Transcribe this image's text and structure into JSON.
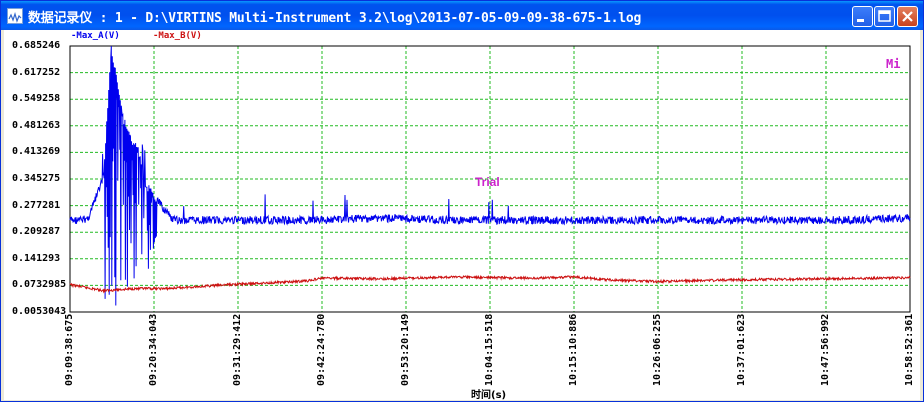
{
  "window": {
    "title": "数据记录仪 : 1 - D:\\VIRTINS Multi-Instrument 3.2\\log\\2013-07-05-09-09-38-675-1.log"
  },
  "colors": {
    "series_a": "#0000ee",
    "series_b": "#cc1111",
    "grid": "#22bb22",
    "annotation": "#cc22cc"
  },
  "annotations": {
    "trial": "Trial",
    "corner": "Mi"
  },
  "chart_data": {
    "type": "line",
    "xlabel": "时间(s)",
    "ylabel": "",
    "legend_placement": "top-left",
    "grid": true,
    "ylim": [
      0.0053043,
      0.685246
    ],
    "yticks": [
      "0.685246",
      "0.617252",
      "0.549258",
      "0.481263",
      "0.413269",
      "0.345275",
      "0.277281",
      "0.209287",
      "0.141293",
      "0.0732985",
      "0.0053043"
    ],
    "xticks": [
      "09:09:38:675",
      "09:20:34:043",
      "09:31:29:412",
      "09:42:24:780",
      "09:53:20:149",
      "10:04:15:518",
      "10:15:10:886",
      "10:26:06:255",
      "10:37:01:623",
      "10:47:56:992",
      "10:58:52:361"
    ],
    "series": [
      {
        "name": "Max_A(V)",
        "x": [
          "09:09:38",
          "09:11:00",
          "09:12:00",
          "09:14:00",
          "09:15:00",
          "09:16:30",
          "09:17:30",
          "09:18:30",
          "09:19:30",
          "09:21:00",
          "09:23:00",
          "09:25:00",
          "09:30:00",
          "09:40:00",
          "09:50:00",
          "10:00:00",
          "10:10:00",
          "10:20:00",
          "10:30:00",
          "10:40:00",
          "10:50:00",
          "10:58:52"
        ],
        "values": [
          0.24,
          0.24,
          0.245,
          0.35,
          0.685,
          0.5,
          0.45,
          0.42,
          0.33,
          0.29,
          0.24,
          0.24,
          0.24,
          0.24,
          0.245,
          0.24,
          0.24,
          0.24,
          0.24,
          0.24,
          0.24,
          0.245
        ]
      },
      {
        "name": "Max_B(V)",
        "x": [
          "09:09:38",
          "09:14:00",
          "09:18:00",
          "09:22:00",
          "09:30:00",
          "09:38:00",
          "09:40:30",
          "09:42:24",
          "09:50:00",
          "10:00:00",
          "10:04:15",
          "10:10:00",
          "10:15:10",
          "10:20:00",
          "10:26:06",
          "10:37:01",
          "10:47:56",
          "10:58:52"
        ],
        "values": [
          0.075,
          0.06,
          0.065,
          0.065,
          0.075,
          0.082,
          0.085,
          0.092,
          0.09,
          0.095,
          0.093,
          0.092,
          0.095,
          0.087,
          0.083,
          0.088,
          0.09,
          0.093
        ]
      }
    ]
  }
}
